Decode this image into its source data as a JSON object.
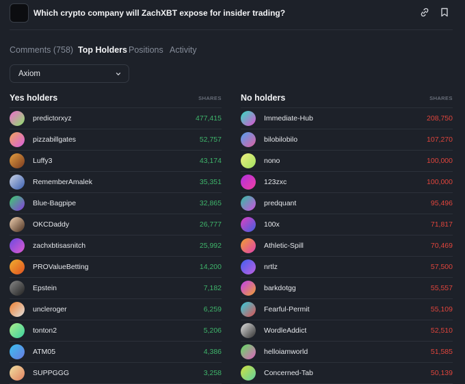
{
  "header": {
    "title": "Which crypto company will ZachXBT expose for insider trading?"
  },
  "tabs": [
    "Comments (758)",
    "Top Holders",
    "Positions",
    "Activity"
  ],
  "dropdown": {
    "value": "Axiom"
  },
  "yes": {
    "heading": "Yes holders",
    "column": "SHARES",
    "rows": [
      {
        "name": "predictorxyz",
        "shares": "477,415"
      },
      {
        "name": "pizzabillgates",
        "shares": "52,757"
      },
      {
        "name": "Luffy3",
        "shares": "43,174"
      },
      {
        "name": "RememberAmalek",
        "shares": "35,351"
      },
      {
        "name": "Blue-Bagpipe",
        "shares": "32,865"
      },
      {
        "name": "OKCDaddy",
        "shares": "26,777"
      },
      {
        "name": "zachxbtisasnitch",
        "shares": "25,992"
      },
      {
        "name": "PROValueBetting",
        "shares": "14,200"
      },
      {
        "name": "Epstein",
        "shares": "7,182"
      },
      {
        "name": "uncleroger",
        "shares": "6,259"
      },
      {
        "name": "tonton2",
        "shares": "5,206"
      },
      {
        "name": "ATM05",
        "shares": "4,386"
      },
      {
        "name": "SUPPGGG",
        "shares": "3,258"
      }
    ]
  },
  "no": {
    "heading": "No holders",
    "column": "SHARES",
    "rows": [
      {
        "name": "Immediate-Hub",
        "shares": "208,750"
      },
      {
        "name": "bilobilobilo",
        "shares": "107,270"
      },
      {
        "name": "nono",
        "shares": "100,000"
      },
      {
        "name": "123zxc",
        "shares": "100,000"
      },
      {
        "name": "predquant",
        "shares": "95,496"
      },
      {
        "name": "100x",
        "shares": "71,817"
      },
      {
        "name": "Athletic-Spill",
        "shares": "70,469"
      },
      {
        "name": "nrtlz",
        "shares": "57,500"
      },
      {
        "name": "barkdotgg",
        "shares": "55,557"
      },
      {
        "name": "Fearful-Permit",
        "shares": "55,109"
      },
      {
        "name": "WordleAddict",
        "shares": "52,510"
      },
      {
        "name": "helloiamworld",
        "shares": "51,585"
      },
      {
        "name": "Concerned-Tab",
        "shares": "50,139"
      }
    ]
  }
}
